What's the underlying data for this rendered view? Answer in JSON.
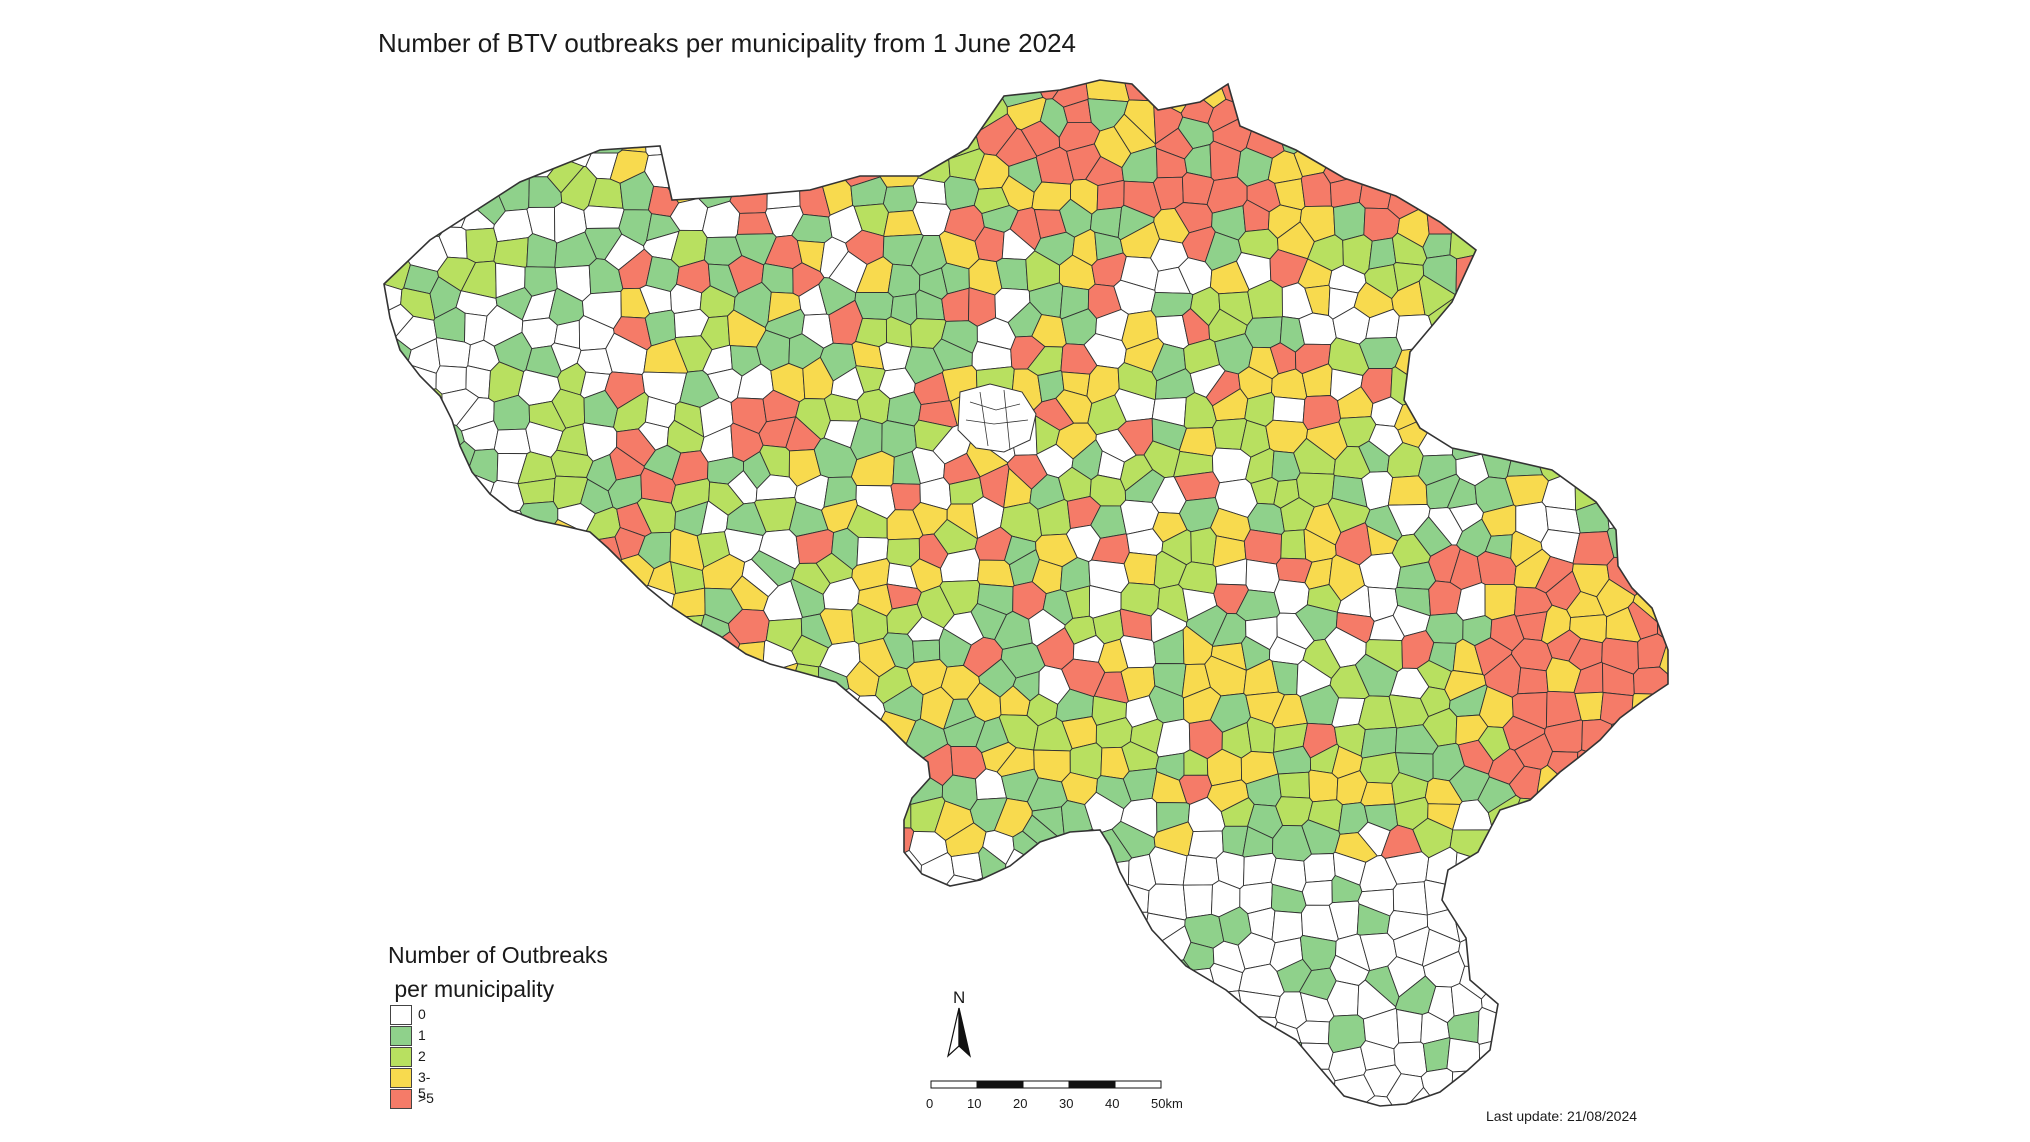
{
  "title": "Number of BTV outbreaks per municipality from 1 June 2024",
  "legend": {
    "title_line1": "Number of Outbreaks",
    "title_line2": " per municipality",
    "classes": [
      {
        "label": "0",
        "color": "#ffffff"
      },
      {
        "label": "1",
        "color": "#8fd18b"
      },
      {
        "label": "2",
        "color": "#b8e060"
      },
      {
        "label": "3-5",
        "color": "#f8da4e"
      },
      {
        "label": ">5",
        "color": "#f57b68"
      }
    ]
  },
  "north_arrow": {
    "label": "N"
  },
  "scale_bar": {
    "ticks": [
      "0",
      "10",
      "20",
      "30",
      "40",
      "50"
    ],
    "unit": "km"
  },
  "last_update": "Last update: 21/08/2024"
}
